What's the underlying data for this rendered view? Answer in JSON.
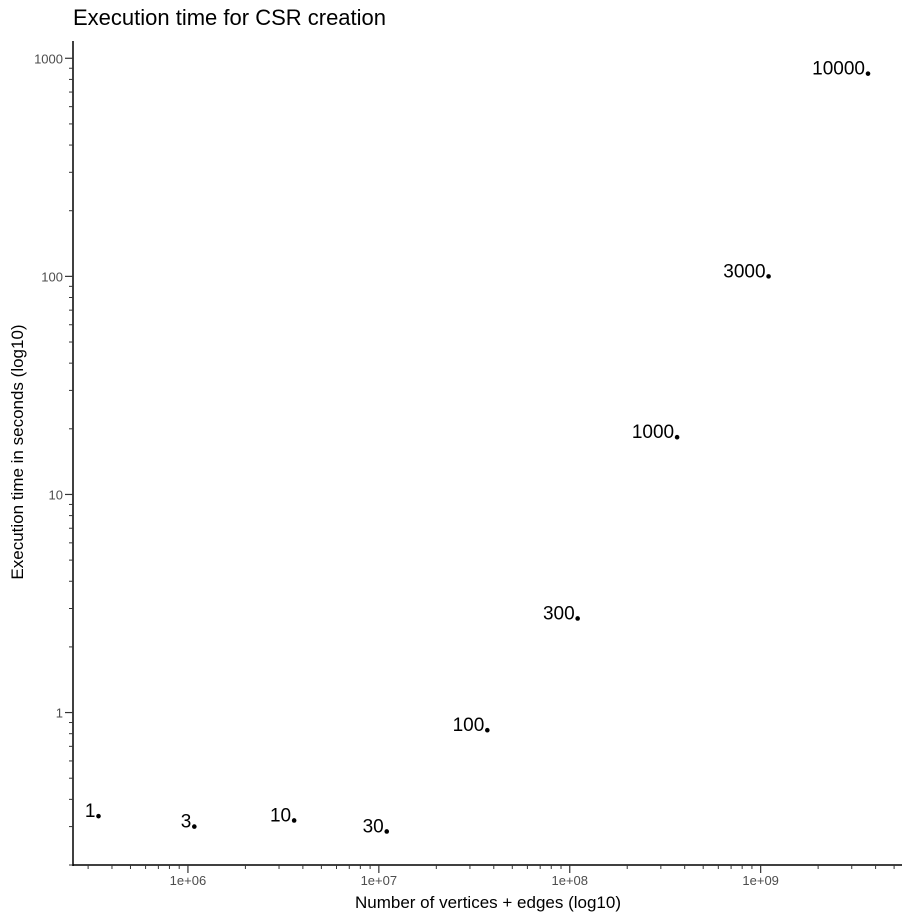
{
  "chart_data": {
    "type": "scatter",
    "title": "Execution time for CSR creation",
    "xlabel": "Number of vertices + edges (log10)",
    "ylabel": "Execution time in seconds (log10)",
    "x_scale": "log10",
    "y_scale": "log10",
    "xlim": [
      250000,
      5500000000
    ],
    "ylim": [
      0.2,
      1200
    ],
    "x_ticks": [
      {
        "value": 1000000,
        "label": "1e+06"
      },
      {
        "value": 10000000,
        "label": "1e+07"
      },
      {
        "value": 100000000,
        "label": "1e+08"
      },
      {
        "value": 1000000000,
        "label": "1e+09"
      }
    ],
    "y_ticks": [
      {
        "value": 1,
        "label": "1"
      },
      {
        "value": 10,
        "label": "10"
      },
      {
        "value": 100,
        "label": "100"
      },
      {
        "value": 1000,
        "label": "1000"
      }
    ],
    "grid": false,
    "legend": "none",
    "point_color": "#000000",
    "points": [
      {
        "label": "1",
        "x": 340000,
        "y": 0.335
      },
      {
        "label": "3",
        "x": 1080000,
        "y": 0.3
      },
      {
        "label": "10",
        "x": 3600000,
        "y": 0.32
      },
      {
        "label": "30",
        "x": 11000000,
        "y": 0.285
      },
      {
        "label": "100",
        "x": 37000000,
        "y": 0.83
      },
      {
        "label": "300",
        "x": 110000000,
        "y": 2.7
      },
      {
        "label": "1000",
        "x": 365000000,
        "y": 18.3
      },
      {
        "label": "3000",
        "x": 1100000000,
        "y": 100
      },
      {
        "label": "10000",
        "x": 3650000000,
        "y": 850
      }
    ]
  }
}
